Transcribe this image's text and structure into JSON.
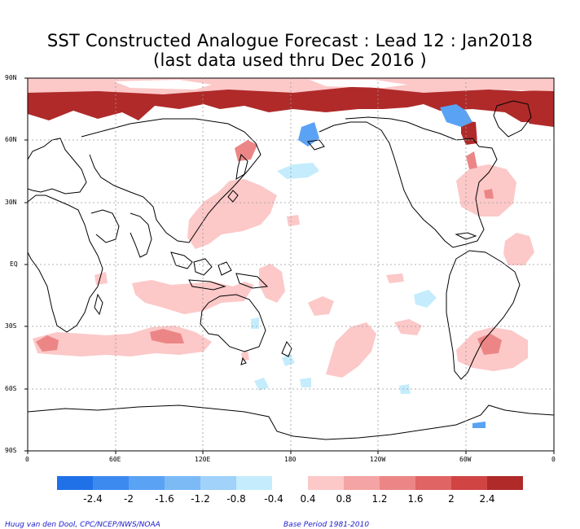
{
  "title": {
    "line1": "SST Constructed Analogue Forecast : Lead 12 : Jan2018",
    "line2": "(last data used thru Dec 2016 )"
  },
  "axes": {
    "lat_labels": [
      "90N",
      "60N",
      "30N",
      "EQ",
      "30S",
      "60S",
      "90S"
    ],
    "lon_labels": [
      "0",
      "60E",
      "120E",
      "180",
      "120W",
      "60W",
      "0"
    ]
  },
  "colorbar": {
    "negative_colors": [
      "#2070e8",
      "#3c8af0",
      "#5aa2f4",
      "#7cbaf6",
      "#a0d2fa",
      "#c4ecfc"
    ],
    "negative_labels": [
      "-2.4",
      "-2",
      "-1.6",
      "-1.2",
      "-0.8",
      "-0.4"
    ],
    "positive_colors": [
      "#fcc8c8",
      "#f4a4a4",
      "#ec8686",
      "#e06464",
      "#d04444",
      "#b02a2a"
    ],
    "positive_labels": [
      "0.4",
      "0.8",
      "1.2",
      "1.6",
      "2",
      "2.4"
    ]
  },
  "credits": {
    "left": "Huug van den Dool, CPC/NCEP/NWS/NOAA",
    "right": "Base Period 1981-2010"
  },
  "anomaly_colors": {
    "warm_light": "#fcc8c8",
    "warm_mid": "#ec8686",
    "warm_dark": "#b02a2a",
    "cool_light": "#c4ecfc",
    "cool_mid": "#5aa2f4"
  }
}
